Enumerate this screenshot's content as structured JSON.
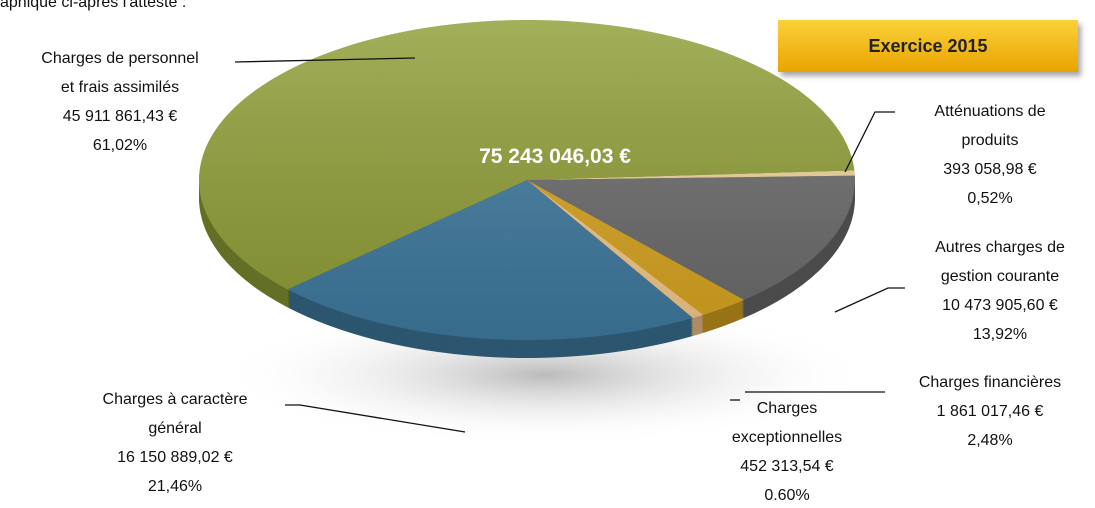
{
  "caption": "aphique ci-après l'atteste :",
  "badge": "Exercice 2015",
  "chart_data": {
    "type": "pie",
    "total": "75 243 046,03 €",
    "categories": [
      "Atténuations de produits",
      "Autres charges de gestion courante",
      "Charges financières",
      "Charges exceptionnelles",
      "Charges à caractère général",
      "Charges de personnel et frais assimilés"
    ],
    "values": [
      0.52,
      13.92,
      2.48,
      0.6,
      21.46,
      61.02
    ],
    "value_labels": [
      "0,52%",
      "13,92%",
      "2,48%",
      "0.60%",
      "21,46%",
      "61,02%"
    ],
    "amount_labels": [
      "393 058,98 €",
      "10 473 905,60 €",
      "1 861 017,46 €",
      "452 313,54 €",
      "16 150 889,02 €",
      "45 911 861,43 €"
    ],
    "colors": [
      "#f0d59a",
      "#6b6b6b",
      "#d9a520",
      "#f5c98a",
      "#3f7a9f",
      "#8f9e36"
    ]
  }
}
